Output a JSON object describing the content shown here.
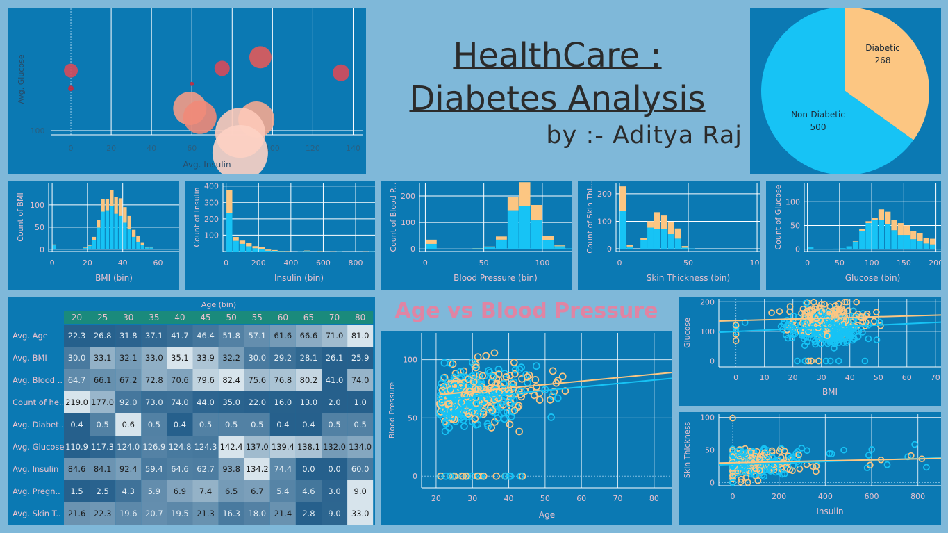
{
  "title": {
    "line1": "HealthCare :",
    "line2": "Diabetes Analysis",
    "byline": "by :- Aditya Raj"
  },
  "scatter_title": "Age vs Blood Pressure",
  "colors": {
    "diabetic": "#fcc682",
    "non_diabetic": "#17c3f5",
    "panel": "#0b79b3",
    "background": "#7fb8d9",
    "title_pink": "#e084a3"
  },
  "chart_data": [
    {
      "id": "bubble",
      "type": "scatter",
      "xlabel": "Avg. Insulin",
      "ylabel": "Avg. Glucose",
      "x_ticks": [
        0,
        20,
        40,
        60,
        80,
        100,
        120,
        140
      ],
      "y_ticks": [
        100
      ],
      "points": [
        {
          "x": 0,
          "y": 127,
          "size": 10,
          "color": "#d64a5a"
        },
        {
          "x": 0,
          "y": 119,
          "size": 4,
          "color": "#c52a3d"
        },
        {
          "x": 60,
          "y": 121,
          "size": 3,
          "color": "#c52a3d"
        },
        {
          "x": 75,
          "y": 128,
          "size": 11,
          "color": "#d64a5a"
        },
        {
          "x": 94,
          "y": 133,
          "size": 16,
          "color": "#e05a5a"
        },
        {
          "x": 134,
          "y": 126,
          "size": 12,
          "color": "#d64a5a"
        },
        {
          "x": 59,
          "y": 110,
          "size": 24,
          "color": "#f39b86"
        },
        {
          "x": 64,
          "y": 106,
          "size": 24,
          "color": "#f08a78"
        },
        {
          "x": 92,
          "y": 105,
          "size": 26,
          "color": "#f4a890"
        },
        {
          "x": 84,
          "y": 99,
          "size": 36,
          "color": "#fdc9b8"
        },
        {
          "x": 84,
          "y": 90,
          "size": 40,
          "color": "#fdd2c4"
        }
      ]
    },
    {
      "id": "pie",
      "type": "pie",
      "slices": [
        {
          "label": "Diabetic",
          "value": 268,
          "color": "#fcc682"
        },
        {
          "label": "Non-Diabetic",
          "value": 500,
          "color": "#17c3f5"
        }
      ]
    },
    {
      "id": "hist_bmi",
      "type": "bar",
      "xlabel": "BMI (bin)",
      "ylabel": "Count of BMI",
      "bin_start": 0,
      "bin_width": 2.5,
      "xlim": [
        -2,
        72
      ],
      "x_ticks": [
        0,
        20,
        40,
        60
      ],
      "y_ticks": [
        0,
        50,
        100
      ],
      "ylim": [
        -5,
        150
      ],
      "series": [
        {
          "name": "",
          "values": [
            9,
            0,
            0,
            0,
            0,
            0,
            0,
            3,
            8,
            21,
            49,
            85,
            88,
            98,
            80,
            75,
            60,
            45,
            28,
            17,
            10,
            4,
            4,
            1,
            0,
            0,
            0,
            1
          ]
        },
        {
          "name": "",
          "values": [
            2,
            0,
            0,
            0,
            0,
            0,
            0,
            1,
            2,
            7,
            17,
            29,
            26,
            36,
            38,
            40,
            35,
            30,
            16,
            13,
            6,
            2,
            2,
            0,
            0,
            0,
            0,
            0
          ]
        }
      ]
    },
    {
      "id": "hist_insulin",
      "type": "bar",
      "xlabel": "Insulin (bin)",
      "ylabel": "Count of Insulin",
      "bin_start": 0,
      "bin_width": 40,
      "xlim": [
        -20,
        920
      ],
      "x_ticks": [
        0,
        200,
        400,
        600,
        800
      ],
      "y_ticks": [
        100,
        200,
        300,
        400
      ],
      "ylim": [
        0,
        420
      ],
      "series": [
        {
          "name": "",
          "values": [
            236,
            65,
            47,
            32,
            20,
            14,
            5,
            4,
            2,
            1,
            0,
            1,
            3,
            0,
            1,
            0,
            0,
            1,
            0,
            0,
            0,
            0,
            1
          ]
        },
        {
          "name": "",
          "values": [
            138,
            24,
            20,
            21,
            13,
            14,
            7,
            5,
            2,
            2,
            0,
            0,
            3,
            0,
            2,
            0,
            1,
            0,
            0,
            0,
            0,
            1,
            0
          ]
        }
      ]
    },
    {
      "id": "hist_bp",
      "type": "bar",
      "xlabel": "Blood Pressure (bin)",
      "ylabel": "Count of Blood P...",
      "bin_start": 0,
      "bin_width": 10,
      "xlim": [
        -5,
        125
      ],
      "x_ticks": [
        0,
        50,
        100
      ],
      "y_ticks": [
        0,
        100,
        200
      ],
      "ylim": [
        -10,
        250
      ],
      "series": [
        {
          "name": "",
          "values": [
            19,
            0,
            0,
            0,
            2,
            6,
            35,
            146,
            162,
            108,
            32,
            10,
            2
          ]
        },
        {
          "name": "",
          "values": [
            16,
            0,
            0,
            0,
            1,
            3,
            12,
            51,
            90,
            58,
            18,
            3,
            0
          ]
        }
      ]
    },
    {
      "id": "hist_skin",
      "type": "bar",
      "xlabel": "Skin Thickness (bin)",
      "ylabel": "Count of Skin Thi...",
      "bin_start": 0,
      "bin_width": 5,
      "xlim": [
        -2.5,
        102.5
      ],
      "x_ticks": [
        0,
        50,
        100
      ],
      "y_ticks": [
        0,
        100,
        200
      ],
      "ylim": [
        -10,
        240
      ],
      "series": [
        {
          "name": "",
          "values": [
            139,
            8,
            0,
            33,
            77,
            72,
            71,
            53,
            37,
            4,
            1,
            0,
            0,
            0,
            0,
            0,
            0,
            0,
            0,
            0
          ]
        },
        {
          "name": "",
          "values": [
            88,
            5,
            0,
            7,
            23,
            61,
            50,
            45,
            37,
            6,
            0,
            0,
            0,
            0,
            0,
            0,
            0,
            0,
            0,
            0
          ]
        }
      ]
    },
    {
      "id": "hist_glucose",
      "type": "bar",
      "xlabel": "Glucose (bin)",
      "ylabel": "Count of Glucose",
      "bin_start": 0,
      "bin_width": 10,
      "xlim": [
        -5,
        208
      ],
      "x_ticks": [
        0,
        50,
        100,
        150,
        200
      ],
      "y_ticks": [
        0,
        50,
        100
      ],
      "ylim": [
        -5,
        140
      ],
      "series": [
        {
          "name": "",
          "values": [
            4,
            0,
            0,
            0,
            1,
            2,
            6,
            16,
            39,
            55,
            61,
            61,
            53,
            40,
            30,
            30,
            21,
            17,
            12,
            10
          ]
        },
        {
          "name": "",
          "values": [
            1,
            0,
            0,
            0,
            0,
            0,
            0,
            1,
            3,
            4,
            5,
            23,
            26,
            21,
            25,
            20,
            17,
            17,
            11,
            12
          ]
        }
      ]
    },
    {
      "id": "scatter_age_bp",
      "type": "scatter",
      "title": "Age vs Blood Pressure",
      "xlabel": "Age",
      "ylabel": "Blood Pressure",
      "x_ticks": [
        20,
        30,
        40,
        50,
        60,
        70,
        80
      ],
      "y_ticks": [
        0,
        50,
        100
      ],
      "xlim": [
        16,
        85
      ],
      "ylim": [
        -10,
        123
      ],
      "trend_non_diabetic": [
        [
          21,
          65
        ],
        [
          85,
          84
        ]
      ],
      "trend_diabetic": [
        [
          21,
          70
        ],
        [
          85,
          89
        ]
      ]
    },
    {
      "id": "scatter_bmi_glucose",
      "type": "scatter",
      "xlabel": "BMI",
      "ylabel": "Glucose",
      "x_ticks": [
        0,
        10,
        20,
        30,
        40,
        50,
        60,
        70
      ],
      "y_ticks": [
        0,
        100,
        200
      ],
      "xlim": [
        -6,
        72
      ],
      "ylim": [
        -20,
        210
      ],
      "trend_non_diabetic": [
        [
          -6,
          97
        ],
        [
          72,
          131
        ]
      ],
      "trend_diabetic": [
        [
          -6,
          135
        ],
        [
          72,
          155
        ]
      ]
    },
    {
      "id": "scatter_insulin_skin",
      "type": "scatter",
      "xlabel": "Insulin",
      "ylabel": "Skin Thickness",
      "x_ticks": [
        0,
        200,
        400,
        600,
        800
      ],
      "y_ticks": [
        0,
        50,
        100
      ],
      "xlim": [
        -60,
        900
      ],
      "ylim": [
        -5,
        105
      ],
      "trend_non_diabetic": [
        [
          -60,
          27
        ],
        [
          900,
          38
        ]
      ],
      "trend_diabetic": [
        [
          -60,
          30
        ],
        [
          900,
          37
        ]
      ]
    },
    {
      "id": "age_table",
      "type": "heatmap",
      "header": "Age (bin)",
      "columns": [
        "20",
        "25",
        "30",
        "35",
        "40",
        "45",
        "50",
        "55",
        "60",
        "65",
        "70",
        "80"
      ],
      "rows": [
        {
          "label": "Avg. Age",
          "values": [
            "22.3",
            "26.8",
            "31.8",
            "37.1",
            "41.7",
            "46.4",
            "51.8",
            "57.1",
            "61.6",
            "66.6",
            "71.0",
            "81.0"
          ]
        },
        {
          "label": "Avg. BMI",
          "values": [
            "30.0",
            "33.1",
            "32.1",
            "33.0",
            "35.1",
            "33.9",
            "32.2",
            "30.0",
            "29.2",
            "28.1",
            "26.1",
            "25.9"
          ]
        },
        {
          "label": "Avg. Blood ..",
          "values": [
            "64.7",
            "66.1",
            "67.2",
            "72.8",
            "70.6",
            "79.6",
            "82.4",
            "75.6",
            "76.8",
            "80.2",
            "41.0",
            "74.0"
          ]
        },
        {
          "label": "Count of he..",
          "values": [
            "219.0",
            "177.0",
            "92.0",
            "73.0",
            "74.0",
            "44.0",
            "35.0",
            "22.0",
            "16.0",
            "13.0",
            "2.0",
            "1.0"
          ]
        },
        {
          "label": "Avg. Diabet..",
          "values": [
            "0.4",
            "0.5",
            "0.6",
            "0.5",
            "0.4",
            "0.5",
            "0.5",
            "0.5",
            "0.4",
            "0.4",
            "0.5",
            "0.5"
          ]
        },
        {
          "label": "Avg. Glucose",
          "values": [
            "110.9",
            "117.3",
            "124.0",
            "126.9",
            "124.8",
            "124.3",
            "142.4",
            "137.0",
            "139.4",
            "138.1",
            "132.0",
            "134.0"
          ]
        },
        {
          "label": "Avg. Insulin",
          "values": [
            "84.6",
            "84.1",
            "92.4",
            "59.4",
            "64.6",
            "62.7",
            "93.8",
            "134.2",
            "74.4",
            "0.0",
            "0.0",
            "60.0"
          ]
        },
        {
          "label": "Avg. Pregn..",
          "values": [
            "1.5",
            "2.5",
            "4.3",
            "5.9",
            "6.9",
            "7.4",
            "6.5",
            "6.7",
            "5.4",
            "4.6",
            "3.0",
            "9.0"
          ]
        },
        {
          "label": "Avg. Skin T..",
          "values": [
            "21.6",
            "22.3",
            "19.6",
            "20.7",
            "19.5",
            "21.3",
            "16.3",
            "18.0",
            "21.4",
            "2.8",
            "9.0",
            "33.0"
          ]
        }
      ]
    }
  ]
}
